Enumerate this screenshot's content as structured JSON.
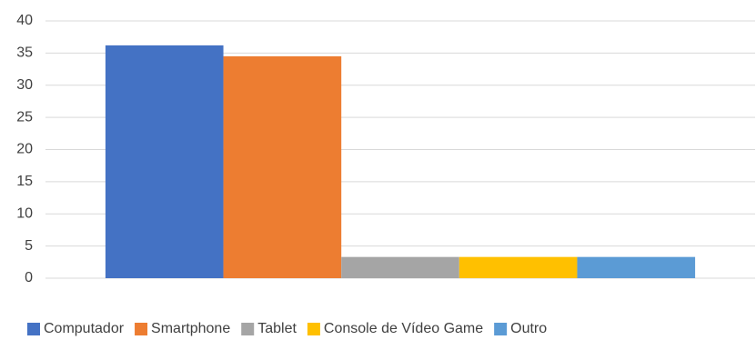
{
  "chart_data": {
    "type": "bar",
    "categories": [
      null
    ],
    "series": [
      {
        "name": "Computador",
        "color": "#4472c4",
        "values": [
          36.2
        ]
      },
      {
        "name": "Smartphone",
        "color": "#ed7d31",
        "values": [
          34.5
        ]
      },
      {
        "name": "Tablet",
        "color": "#a5a5a5",
        "values": [
          3.3
        ]
      },
      {
        "name": "Console de Vídeo Game",
        "color": "#ffc000",
        "values": [
          3.3
        ]
      },
      {
        "name": "Outro",
        "color": "#5b9bd5",
        "values": [
          3.3
        ]
      }
    ],
    "ylim": [
      0,
      40
    ],
    "yticks": [
      0,
      5,
      10,
      15,
      20,
      25,
      30,
      35,
      40
    ],
    "grid": true,
    "legend": "bottom"
  }
}
